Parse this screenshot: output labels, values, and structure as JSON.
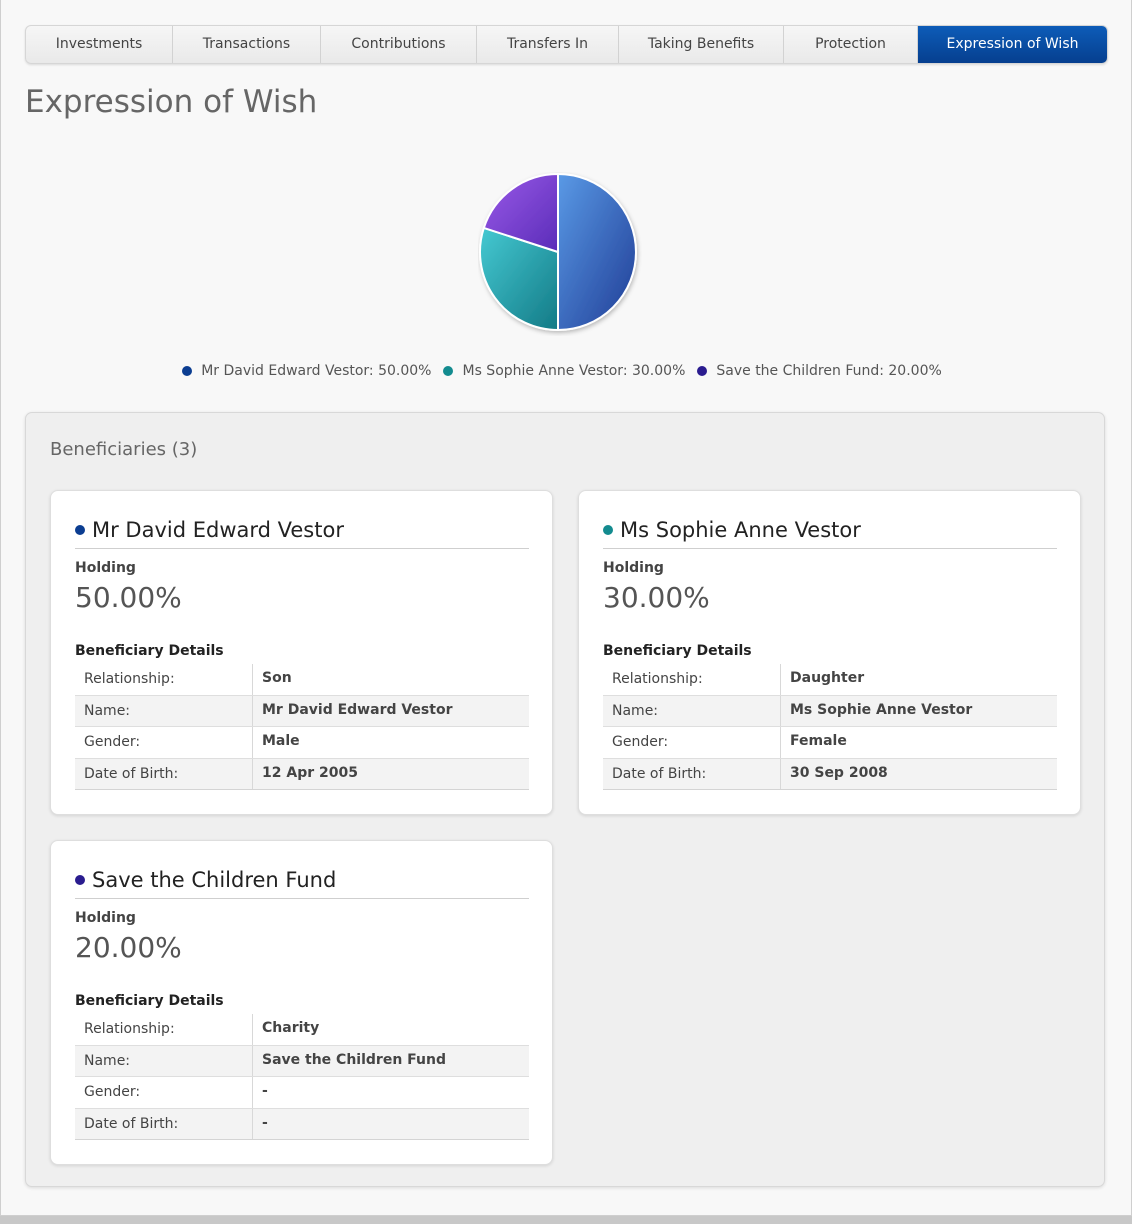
{
  "tabs": [
    {
      "label": "Investments",
      "active": false
    },
    {
      "label": "Transactions",
      "active": false
    },
    {
      "label": "Contributions",
      "active": false
    },
    {
      "label": "Transfers In",
      "active": false
    },
    {
      "label": "Taking Benefits",
      "active": false
    },
    {
      "label": "Protection",
      "active": false
    },
    {
      "label": "Expression of Wish",
      "active": true
    }
  ],
  "page_title": "Expression of Wish",
  "chart_data": {
    "type": "pie",
    "title": "",
    "slices": [
      {
        "label": "Mr David Edward Vestor: 50.00%",
        "value": 50,
        "color": "#3a6fd0"
      },
      {
        "label": "Ms Sophie Anne Vestor: 30.00%",
        "value": 30,
        "color": "#2aa3ad"
      },
      {
        "label": "Save the Children Fund: 20.00%",
        "value": 20,
        "color": "#7a3fd8"
      }
    ],
    "legend_placement": "bottom"
  },
  "legend_dot_colors": [
    "#0b3d91",
    "#138b8f",
    "#2a1c8f"
  ],
  "beneficiaries": {
    "title": "Beneficiaries (3)",
    "holding_label": "Holding",
    "details_label": "Beneficiary Details",
    "keys": [
      "Relationship:",
      "Name:",
      "Gender:",
      "Date of Birth:"
    ],
    "items": [
      {
        "name": "Mr David Edward Vestor",
        "holding": "50.00%",
        "dot_color": "#0b3d91",
        "relationship": "Son",
        "full_name": "Mr David Edward Vestor",
        "gender": "Male",
        "dob": "12 Apr 2005"
      },
      {
        "name": "Ms Sophie Anne Vestor",
        "holding": "30.00%",
        "dot_color": "#138b8f",
        "relationship": "Daughter",
        "full_name": "Ms Sophie Anne Vestor",
        "gender": "Female",
        "dob": "30 Sep 2008"
      },
      {
        "name": "Save the Children Fund",
        "holding": "20.00%",
        "dot_color": "#2a1c8f",
        "relationship": "Charity",
        "full_name": "Save the Children Fund",
        "gender": "-",
        "dob": "-"
      }
    ]
  }
}
